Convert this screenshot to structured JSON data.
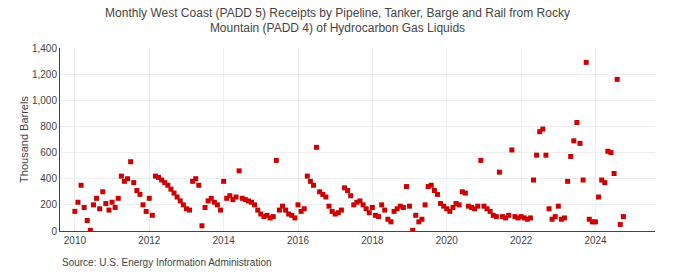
{
  "chart_data": {
    "type": "scatter",
    "title": "Monthly West Coast (PADD 5) Receipts by Pipeline, Tanker, Barge and Rail from Rocky\nMountain (PADD 4) of Hydrocarbon Gas Liquids",
    "y_label": "Thousand Barrels",
    "annotations": [
      "Source: U.S. Energy Information Administration"
    ],
    "color": "#cc0000",
    "marker": "square",
    "grid": true,
    "xlim": [
      2009.6,
      2025.6
    ],
    "xticks": [
      2010,
      2012,
      2014,
      2016,
      2018,
      2020,
      2022,
      2024
    ],
    "ylim": [
      0,
      1400
    ],
    "yticks": [
      0,
      200,
      400,
      600,
      800,
      {
        "value": 1000,
        "label": "1,000"
      },
      {
        "value": 1200,
        "label": "1,200"
      },
      {
        "value": 1400,
        "label": "1,400"
      }
    ],
    "x": [
      2010.0,
      2010.083,
      2010.167,
      2010.25,
      2010.333,
      2010.417,
      2010.5,
      2010.583,
      2010.667,
      2010.75,
      2010.833,
      2010.917,
      2011.0,
      2011.083,
      2011.167,
      2011.25,
      2011.333,
      2011.417,
      2011.5,
      2011.583,
      2011.667,
      2011.75,
      2011.833,
      2011.917,
      2012.0,
      2012.083,
      2012.167,
      2012.25,
      2012.333,
      2012.417,
      2012.5,
      2012.583,
      2012.667,
      2012.75,
      2012.833,
      2012.917,
      2013.0,
      2013.083,
      2013.167,
      2013.25,
      2013.333,
      2013.417,
      2013.5,
      2013.583,
      2013.667,
      2013.75,
      2013.833,
      2013.917,
      2014.0,
      2014.083,
      2014.167,
      2014.25,
      2014.333,
      2014.417,
      2014.5,
      2014.583,
      2014.667,
      2014.75,
      2014.833,
      2014.917,
      2015.0,
      2015.083,
      2015.167,
      2015.25,
      2015.333,
      2015.417,
      2015.5,
      2015.583,
      2015.667,
      2015.75,
      2015.833,
      2015.917,
      2016.0,
      2016.083,
      2016.167,
      2016.25,
      2016.333,
      2016.417,
      2016.5,
      2016.583,
      2016.667,
      2016.75,
      2016.833,
      2016.917,
      2017.0,
      2017.083,
      2017.167,
      2017.25,
      2017.333,
      2017.417,
      2017.5,
      2017.583,
      2017.667,
      2017.75,
      2017.833,
      2017.917,
      2018.0,
      2018.083,
      2018.167,
      2018.25,
      2018.333,
      2018.417,
      2018.5,
      2018.583,
      2018.667,
      2018.75,
      2018.833,
      2018.917,
      2019.0,
      2019.083,
      2019.167,
      2019.25,
      2019.333,
      2019.417,
      2019.5,
      2019.583,
      2019.667,
      2019.75,
      2019.833,
      2019.917,
      2020.0,
      2020.083,
      2020.167,
      2020.25,
      2020.333,
      2020.417,
      2020.5,
      2020.583,
      2020.667,
      2020.75,
      2020.833,
      2020.917,
      2021.0,
      2021.083,
      2021.167,
      2021.25,
      2021.333,
      2021.417,
      2021.5,
      2021.583,
      2021.667,
      2021.75,
      2021.833,
      2021.917,
      2022.0,
      2022.083,
      2022.167,
      2022.25,
      2022.333,
      2022.417,
      2022.5,
      2022.583,
      2022.667,
      2022.75,
      2022.833,
      2022.917,
      2023.0,
      2023.083,
      2023.167,
      2023.25,
      2023.333,
      2023.417,
      2023.5,
      2023.583,
      2023.667,
      2023.75,
      2023.833,
      2023.917,
      2024.0,
      2024.083,
      2024.167,
      2024.25,
      2024.333,
      2024.417,
      2024.5,
      2024.583,
      2024.667,
      2024.75
    ],
    "values": [
      150,
      220,
      350,
      180,
      80,
      5,
      200,
      250,
      170,
      300,
      210,
      160,
      220,
      180,
      250,
      420,
      380,
      400,
      530,
      370,
      310,
      280,
      200,
      150,
      250,
      120,
      420,
      410,
      390,
      370,
      350,
      320,
      290,
      260,
      230,
      200,
      170,
      160,
      380,
      400,
      350,
      40,
      180,
      230,
      250,
      220,
      200,
      160,
      380,
      250,
      270,
      240,
      260,
      460,
      250,
      240,
      230,
      220,
      200,
      160,
      130,
      110,
      120,
      100,
      110,
      540,
      160,
      190,
      160,
      130,
      120,
      100,
      200,
      150,
      170,
      420,
      380,
      350,
      640,
      300,
      280,
      260,
      190,
      150,
      130,
      140,
      160,
      330,
      310,
      270,
      200,
      220,
      230,
      200,
      170,
      140,
      180,
      120,
      110,
      200,
      160,
      90,
      70,
      150,
      170,
      190,
      180,
      340,
      190,
      5,
      120,
      70,
      90,
      200,
      340,
      350,
      310,
      280,
      210,
      190,
      170,
      150,
      180,
      210,
      200,
      300,
      290,
      190,
      180,
      170,
      190,
      540,
      190,
      170,
      150,
      120,
      110,
      450,
      110,
      100,
      120,
      620,
      110,
      100,
      110,
      100,
      90,
      100,
      390,
      580,
      760,
      780,
      580,
      170,
      90,
      110,
      190,
      90,
      100,
      380,
      570,
      690,
      830,
      670,
      390,
      1290,
      90,
      70,
      70,
      260,
      390,
      370,
      610,
      600,
      440,
      1160,
      50,
      110
    ]
  }
}
